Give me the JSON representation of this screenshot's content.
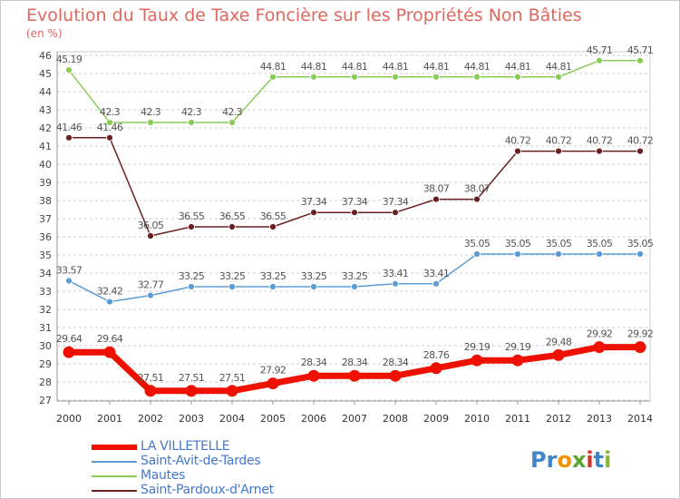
{
  "title": "Evolution du Taux de Taxe Foncière sur les Propriétés Non Bâties",
  "subtitle": "(en %)",
  "logo": {
    "letters": [
      "P",
      "r",
      "o",
      "x",
      "i",
      "t",
      "i"
    ],
    "colors": [
      "#3f86c8",
      "#3f86c8",
      "#f29400",
      "#5aa531",
      "#d6322c",
      "#3f86c8",
      "#8bb83a"
    ]
  },
  "chart_data": {
    "type": "line",
    "title": "Evolution du Taux de Taxe Foncière sur les Propriétés Non Bâties",
    "ylabel": "(en %)",
    "xlabel": "",
    "ylim": [
      27,
      46
    ],
    "grid": "horizontal dashed",
    "legend_position": "bottom-left",
    "categories": [
      "2000",
      "2001",
      "2002",
      "2003",
      "2004",
      "2005",
      "2006",
      "2007",
      "2008",
      "2009",
      "2010",
      "2011",
      "2012",
      "2013",
      "2014"
    ],
    "yticks": [
      "27",
      "28",
      "29",
      "30",
      "31",
      "32",
      "33",
      "34",
      "35",
      "36",
      "37",
      "38",
      "39",
      "40",
      "41",
      "42",
      "43",
      "44",
      "45",
      "46"
    ],
    "series": [
      {
        "name": "Mautes",
        "color": "#88cc55",
        "values": [
          45.19,
          42.3,
          42.3,
          42.3,
          42.3,
          44.81,
          44.81,
          44.81,
          44.81,
          44.81,
          44.81,
          44.81,
          44.81,
          45.71,
          45.71
        ],
        "labels": [
          "45.19",
          "42.3",
          "42.3",
          "42.3",
          "42.3",
          "44.81",
          "44.81",
          "44.81",
          "44.81",
          "44.81",
          "44.81",
          "44.81",
          "44.81",
          "45.71",
          "45.71"
        ]
      },
      {
        "name": "Saint-Pardoux-d'Arnet",
        "color": "#6b1f1f",
        "values": [
          41.46,
          41.46,
          36.05,
          36.55,
          36.55,
          36.55,
          37.34,
          37.34,
          37.34,
          38.07,
          38.07,
          40.72,
          40.72,
          40.72,
          40.72
        ],
        "labels": [
          "41.46",
          "41.46",
          "36.05",
          "36.55",
          "36.55",
          "36.55",
          "37.34",
          "37.34",
          "37.34",
          "38.07",
          "38.07",
          "40.72",
          "40.72",
          "40.72",
          "40.72"
        ]
      },
      {
        "name": "Saint-Avit-de-Tardes",
        "color": "#5b9bd5",
        "values": [
          33.57,
          32.42,
          32.77,
          33.25,
          33.25,
          33.25,
          33.25,
          33.25,
          33.41,
          33.41,
          35.05,
          35.05,
          35.05,
          35.05,
          35.05
        ],
        "labels": [
          "33.57",
          "32.42",
          "32.77",
          "33.25",
          "33.25",
          "33.25",
          "33.25",
          "33.25",
          "33.41",
          "33.41",
          "35.05",
          "35.05",
          "35.05",
          "35.05",
          "35.05"
        ]
      },
      {
        "name": "LA VILLETELLE",
        "color": "#ee1100",
        "values": [
          29.64,
          29.64,
          27.51,
          27.51,
          27.51,
          27.92,
          28.34,
          28.34,
          28.34,
          28.76,
          29.19,
          29.19,
          29.48,
          29.92,
          29.92
        ],
        "labels": [
          "29.64",
          "29.64",
          "27.51",
          "27.51",
          "27.51",
          "27.92",
          "28.34",
          "28.34",
          "28.34",
          "28.76",
          "29.19",
          "29.19",
          "29.48",
          "29.92",
          "29.92"
        ]
      }
    ]
  },
  "legend": [
    {
      "label": "LA VILLETELLE",
      "color": "#ee1100"
    },
    {
      "label": "Saint-Avit-de-Tardes",
      "color": "#5b9bd5"
    },
    {
      "label": "Mautes",
      "color": "#88cc55"
    },
    {
      "label": "Saint-Pardoux-d'Arnet",
      "color": "#6b1f1f"
    }
  ]
}
